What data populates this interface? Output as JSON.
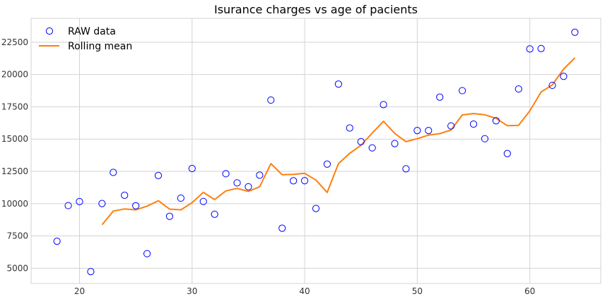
{
  "chart_data": {
    "type": "scatter",
    "title": "Isurance charges vs age of pacients",
    "xlabel": "",
    "ylabel": "",
    "xlim": [
      15.7,
      66.3
    ],
    "ylim": [
      3820,
      24350
    ],
    "xticks": [
      20,
      30,
      40,
      50,
      60
    ],
    "yticks": [
      5000,
      7500,
      10000,
      12500,
      15000,
      17500,
      20000,
      22500
    ],
    "grid": true,
    "legend": "top-left",
    "series": [
      {
        "name": "RAW data",
        "kind": "scatter",
        "marker": "open-circle",
        "color": "#0000ff",
        "x": [
          18,
          19,
          20,
          21,
          22,
          23,
          24,
          25,
          26,
          27,
          28,
          29,
          30,
          31,
          32,
          33,
          34,
          35,
          36,
          37,
          38,
          39,
          40,
          41,
          42,
          43,
          44,
          45,
          46,
          47,
          48,
          49,
          50,
          51,
          52,
          53,
          54,
          55,
          56,
          57,
          58,
          59,
          60,
          61,
          62,
          63,
          64
        ],
        "y": [
          7090,
          9850,
          10160,
          4740,
          10010,
          12420,
          10650,
          9840,
          6130,
          12180,
          9020,
          10430,
          12720,
          10170,
          9180,
          12320,
          11610,
          11310,
          12210,
          18020,
          8100,
          11770,
          11780,
          9630,
          13060,
          19260,
          15860,
          14800,
          14320,
          17670,
          14650,
          12700,
          15660,
          15660,
          18250,
          16020,
          18750,
          16160,
          15030,
          16420,
          13880,
          18880,
          21980,
          22010,
          19160,
          19860,
          23270
        ]
      },
      {
        "name": "Rolling mean",
        "kind": "line",
        "color": "#ff7f0e",
        "x": [
          22,
          23,
          24,
          25,
          26,
          27,
          28,
          29,
          30,
          31,
          32,
          33,
          34,
          35,
          36,
          37,
          38,
          39,
          40,
          41,
          42,
          43,
          44,
          45,
          46,
          47,
          48,
          49,
          50,
          51,
          52,
          53,
          54,
          55,
          56,
          57,
          58,
          59,
          60,
          61,
          62,
          63,
          64
        ],
        "y": [
          8370,
          9430,
          9590,
          9520,
          9810,
          10230,
          9580,
          9520,
          10080,
          10880,
          10320,
          10990,
          11180,
          10950,
          11310,
          13100,
          12240,
          12270,
          12350,
          11830,
          10870,
          13100,
          13900,
          14520,
          15460,
          16380,
          15440,
          14800,
          15030,
          15310,
          15420,
          15700,
          16870,
          16980,
          16880,
          16610,
          16040,
          16060,
          17180,
          18650,
          19200,
          20420,
          21290
        ]
      }
    ]
  }
}
